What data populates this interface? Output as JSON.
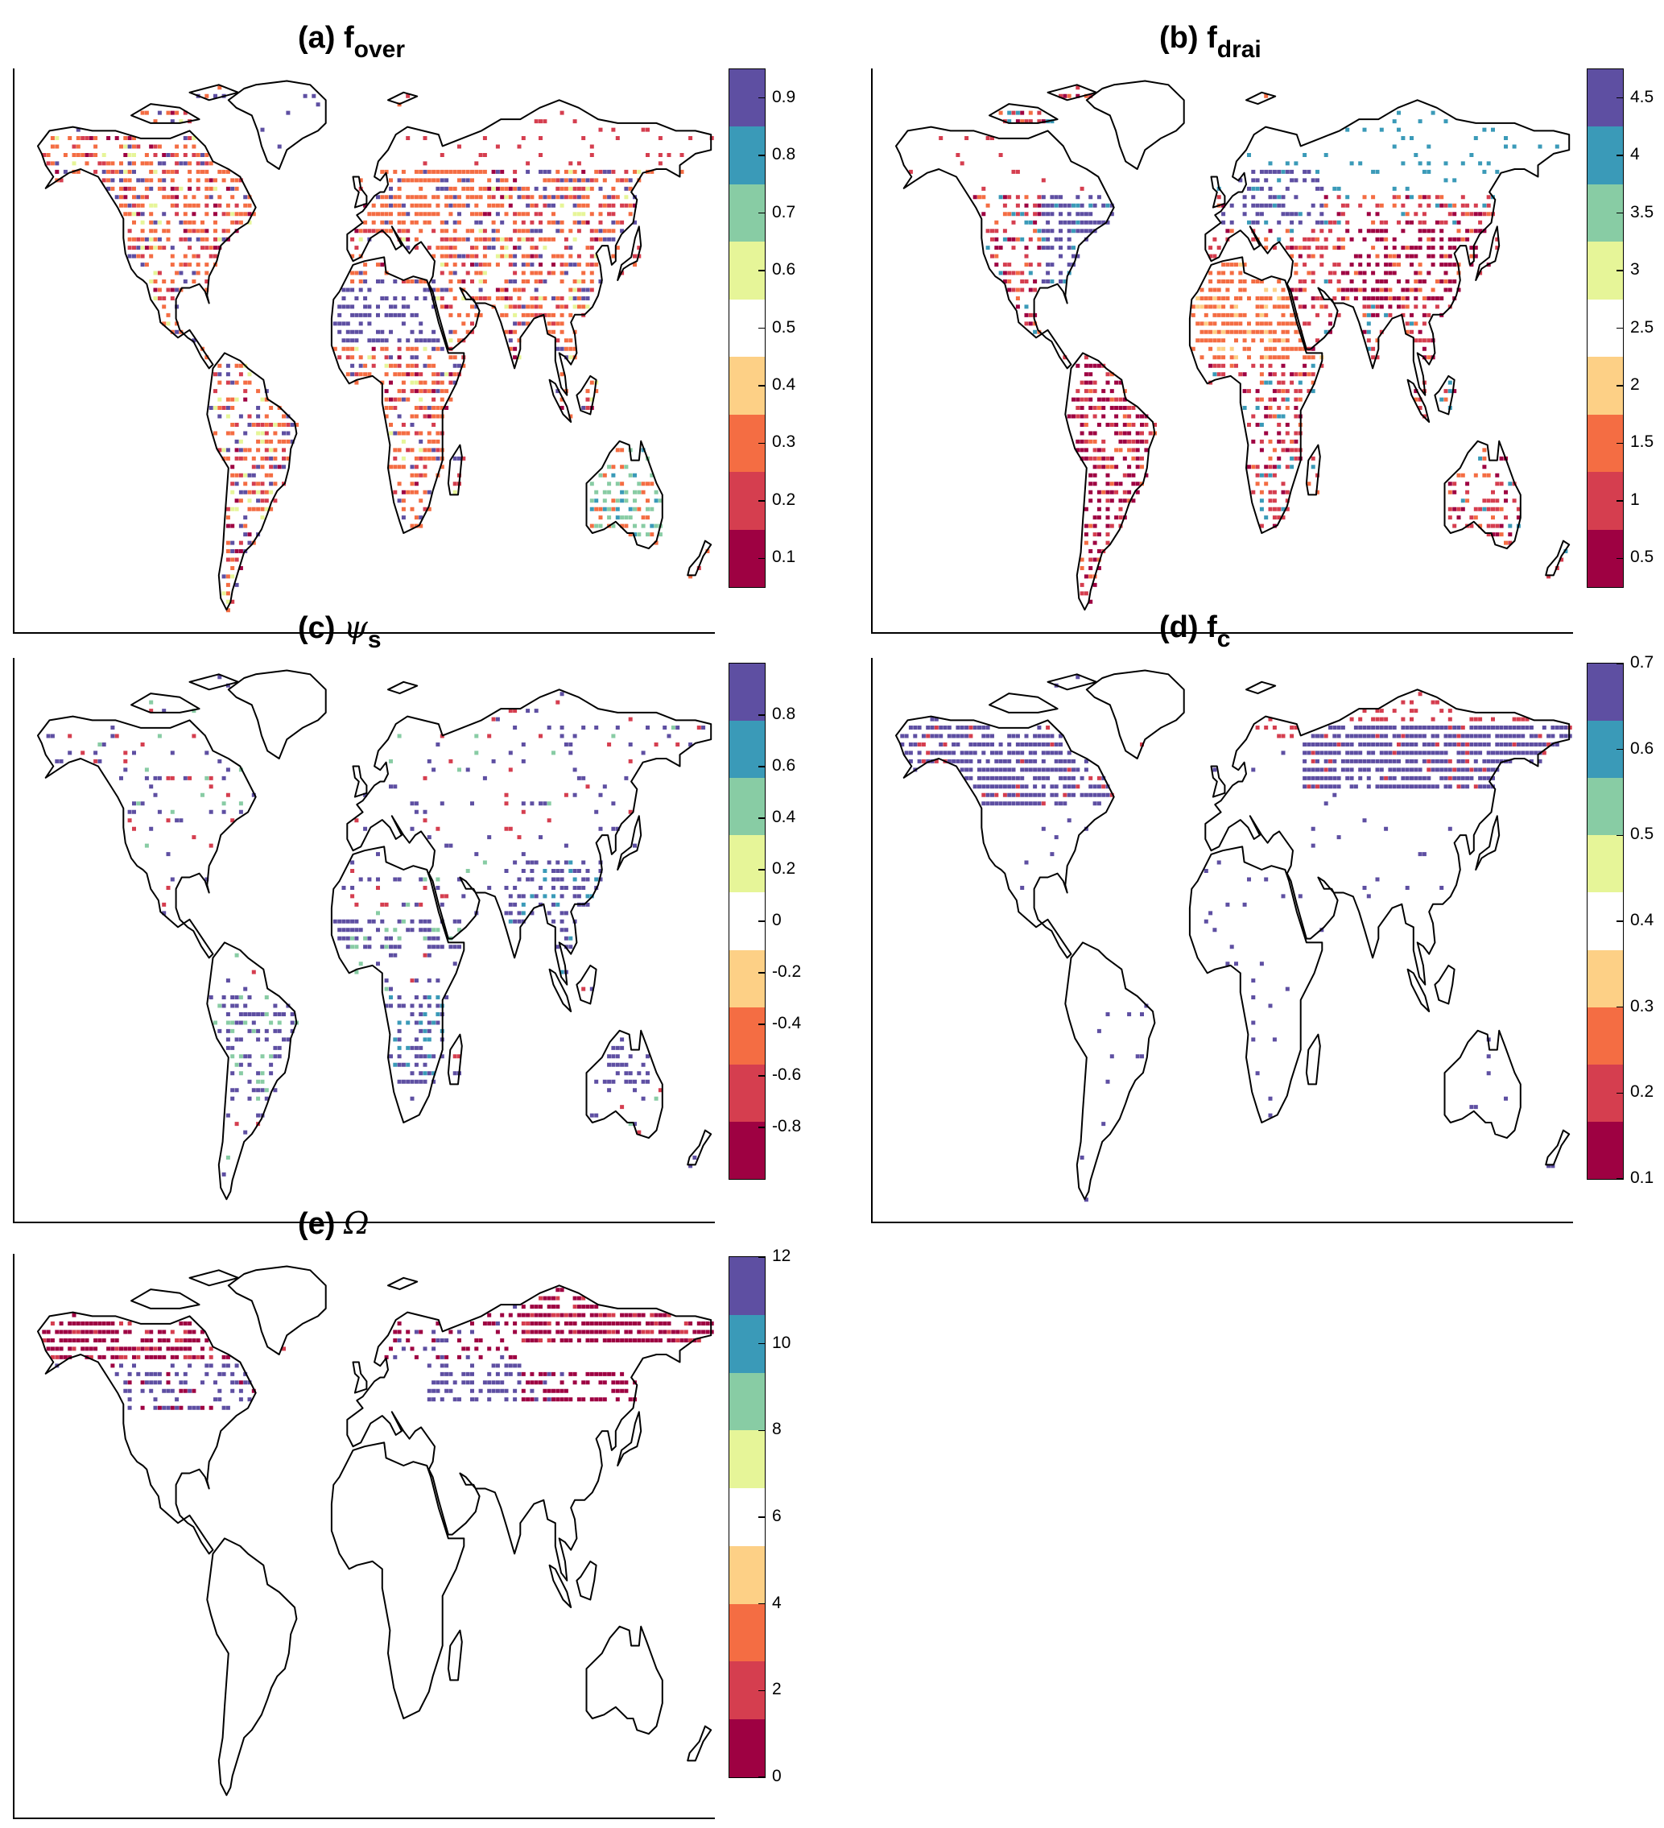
{
  "palette": [
    "#9e0142",
    "#d53e4f",
    "#f46d43",
    "#fdd086",
    "#ffffff",
    "#e6f598",
    "#88ccA4",
    "#3a9ab8",
    "#5e4fa2"
  ],
  "icons": {
    "map": "world-map-outline"
  },
  "panels": [
    {
      "key": "a",
      "label": "(a)",
      "symbol": "f",
      "symbol_style": "sans",
      "subscript": "over",
      "ticks": [
        "0.9",
        "0.8",
        "0.7",
        "0.6",
        "0.5",
        "0.4",
        "0.3",
        "0.2",
        "0.1"
      ],
      "tick_values": [
        0.9,
        0.8,
        0.7,
        0.6,
        0.5,
        0.4,
        0.3,
        0.2,
        0.1
      ],
      "range": [
        0.05,
        0.95
      ],
      "pattern": "fover"
    },
    {
      "key": "b",
      "label": "(b)",
      "symbol": "f",
      "symbol_style": "sans",
      "subscript": "drai",
      "ticks": [
        "4.5",
        "4",
        "3.5",
        "3",
        "2.5",
        "2",
        "1.5",
        "1",
        "0.5"
      ],
      "tick_values": [
        4.5,
        4,
        3.5,
        3,
        2.5,
        2,
        1.5,
        1,
        0.5
      ],
      "range": [
        0.25,
        4.75
      ],
      "pattern": "fdrai"
    },
    {
      "key": "c",
      "label": "(c)",
      "symbol": "ψ",
      "symbol_style": "math",
      "subscript": "s",
      "ticks": [
        "0.8",
        "0.6",
        "0.4",
        "0.2",
        "0",
        "-0.2",
        "-0.4",
        "-0.6",
        "-0.8"
      ],
      "tick_values": [
        0.8,
        0.6,
        0.4,
        0.2,
        0,
        -0.2,
        -0.4,
        -0.6,
        -0.8
      ],
      "range": [
        -1,
        1
      ],
      "pattern": "psis"
    },
    {
      "key": "d",
      "label": "(d)",
      "symbol": "f",
      "symbol_style": "sans",
      "subscript": "c",
      "ticks": [
        "0.7",
        "0.6",
        "0.5",
        "0.4",
        "0.3",
        "0.2",
        "0.1"
      ],
      "tick_values": [
        0.7,
        0.6,
        0.5,
        0.4,
        0.3,
        0.2,
        0.1
      ],
      "range": [
        0.1,
        0.7
      ],
      "pattern": "fc"
    },
    {
      "key": "e",
      "label": "(e)",
      "symbol": "Ω",
      "symbol_style": "math",
      "subscript": "",
      "ticks": [
        "12",
        "10",
        "8",
        "6",
        "4",
        "2",
        "0"
      ],
      "tick_values": [
        12,
        10,
        8,
        6,
        4,
        2,
        0
      ],
      "range": [
        0,
        12
      ],
      "pattern": "omega"
    }
  ]
}
